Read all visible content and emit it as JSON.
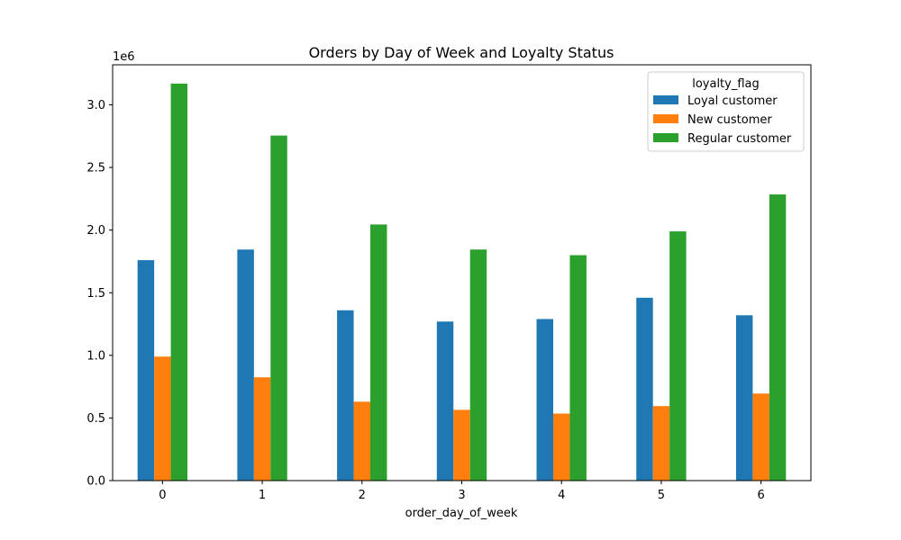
{
  "chart_data": {
    "type": "bar",
    "title": "Orders by Day of Week and Loyalty Status",
    "xlabel": "order_day_of_week",
    "ylabel": "",
    "y_scale_note": "1e6",
    "categories": [
      "0",
      "1",
      "2",
      "3",
      "4",
      "5",
      "6"
    ],
    "series": [
      {
        "name": "Loyal customer",
        "color": "#1f77b4",
        "values": [
          1760000,
          1845000,
          1360000,
          1270000,
          1290000,
          1460000,
          1320000
        ]
      },
      {
        "name": "New customer",
        "color": "#ff7f0e",
        "values": [
          990000,
          825000,
          630000,
          565000,
          535000,
          595000,
          695000
        ]
      },
      {
        "name": "Regular customer",
        "color": "#2ca02c",
        "values": [
          3170000,
          2755000,
          2045000,
          1845000,
          1800000,
          1990000,
          2285000
        ]
      }
    ],
    "ylim": [
      0,
      3320000
    ],
    "yticks": [
      0,
      500000,
      1000000,
      1500000,
      2000000,
      2500000,
      3000000
    ],
    "ytick_labels": [
      "0.0",
      "0.5",
      "1.0",
      "1.5",
      "2.0",
      "2.5",
      "3.0"
    ],
    "legend": {
      "title": "loyalty_flag",
      "position": "top-right"
    },
    "grid": false
  }
}
